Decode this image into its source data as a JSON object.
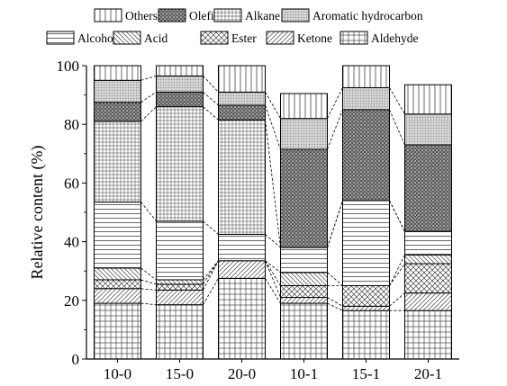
{
  "chart_data": {
    "type": "bar",
    "stacked": true,
    "categories": [
      "10-0",
      "15-0",
      "20-0",
      "10-1",
      "15-1",
      "20-1"
    ],
    "ylabel": "Relative content (%)",
    "xlabel": "",
    "ylim": [
      0,
      100
    ],
    "yticks": [
      0,
      20,
      40,
      60,
      80,
      100
    ],
    "grid": false,
    "legend_position": "top",
    "series": [
      {
        "name": "Aldehyde",
        "pattern": "grid",
        "values": [
          19,
          18.5,
          27.5,
          19,
          16.5,
          16.5
        ]
      },
      {
        "name": "Ketone",
        "pattern": "diagonal",
        "values": [
          5,
          5,
          6,
          2,
          1.5,
          6
        ]
      },
      {
        "name": "Ester",
        "pattern": "crosshatch",
        "values": [
          3,
          2,
          0,
          4,
          7,
          10
        ]
      },
      {
        "name": "Acid",
        "pattern": "backdiagonal",
        "values": [
          4,
          1.5,
          0,
          4.5,
          0,
          3
        ]
      },
      {
        "name": "Alcohol",
        "pattern": "hlines",
        "values": [
          22.5,
          20,
          9,
          8.5,
          29,
          8
        ]
      },
      {
        "name": "Alkane",
        "pattern": "finegrid",
        "values": [
          27.5,
          39,
          39,
          0,
          0,
          0
        ]
      },
      {
        "name": "Olefin",
        "pattern": "dense",
        "values": [
          6.5,
          5,
          5,
          33.5,
          31,
          29.5
        ]
      },
      {
        "name": "Aromatic hydrocarbon",
        "pattern": "dots",
        "values": [
          7.5,
          5.5,
          4.5,
          10.5,
          7.5,
          10.5
        ]
      },
      {
        "name": "Others",
        "pattern": "vlines",
        "values": [
          5,
          3.5,
          9,
          8.5,
          7.5,
          10
        ]
      }
    ],
    "legend_rows": [
      [
        "Others",
        "Olefin",
        "Alkane",
        "Aromatic hydrocarbon"
      ],
      [
        "Alcohol",
        "Acid",
        "Ester",
        "Ketone",
        "Aldehyde"
      ]
    ]
  }
}
